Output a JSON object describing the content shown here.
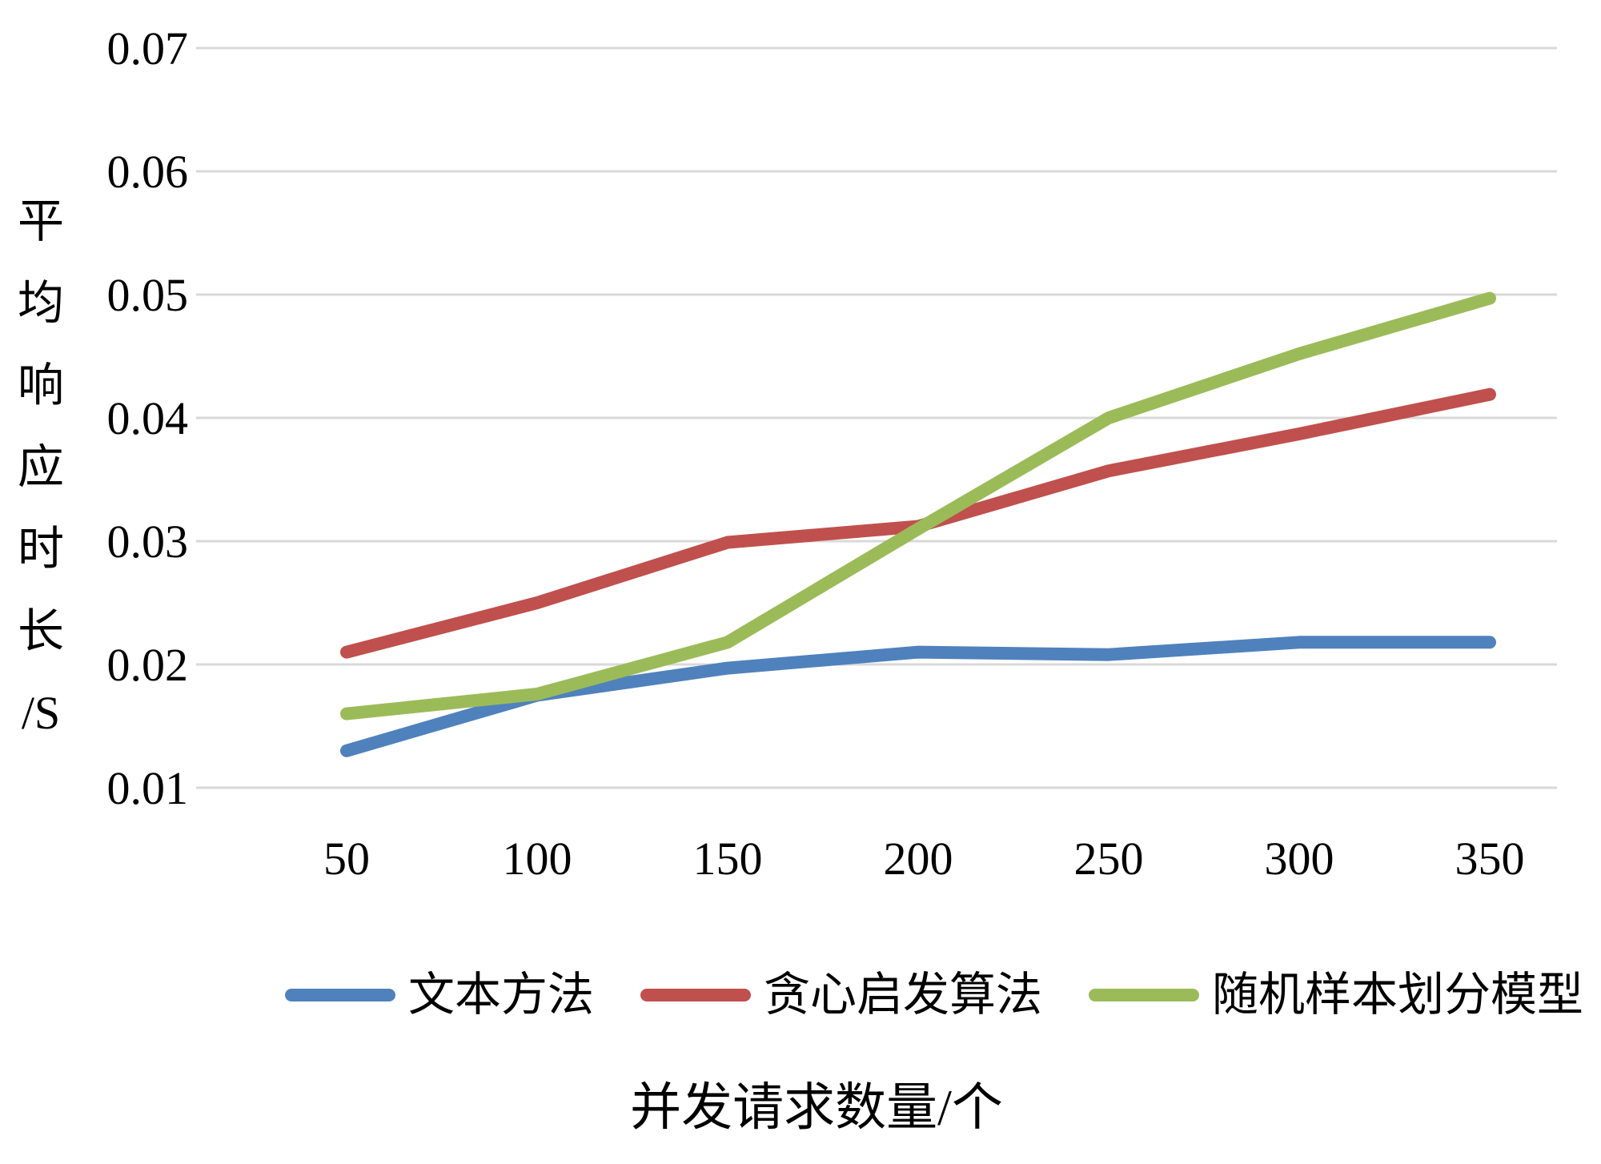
{
  "chart_data": {
    "type": "line",
    "title": "",
    "x_axis_title": "并发请求数量/个",
    "y_axis_title": "平均响应时长/S",
    "y_axis_chars": [
      "平",
      "均",
      "响",
      "应",
      "时",
      "长",
      "/S"
    ],
    "categories": [
      50,
      100,
      150,
      200,
      250,
      300,
      350
    ],
    "y_ticks": [
      0.01,
      0.02,
      0.03,
      0.04,
      0.05,
      0.06,
      0.07
    ],
    "ylim": [
      0.01,
      0.07
    ],
    "xlabel": "并发请求数量/个",
    "ylabel": "平均响应时长/S",
    "grid": true,
    "legend_position": "bottom",
    "series": [
      {
        "name": "文本方法",
        "color": "#4F81BD",
        "values": [
          0.013,
          0.0175,
          0.0197,
          0.021,
          0.0208,
          0.0218,
          0.0218
        ]
      },
      {
        "name": "贪心启发算法",
        "color": "#C0504D",
        "values": [
          0.021,
          0.025,
          0.0299,
          0.0312,
          0.0357,
          0.0387,
          0.0419
        ]
      },
      {
        "name": "随机样本划分模型",
        "color": "#9BBB59",
        "values": [
          0.016,
          0.0176,
          0.0218,
          0.031,
          0.04,
          0.0452,
          0.0497
        ]
      }
    ],
    "style": {
      "gridline_color": "#D9D9D9",
      "text_color": "#000000",
      "background": "#FFFFFF",
      "line_width": 16
    }
  }
}
